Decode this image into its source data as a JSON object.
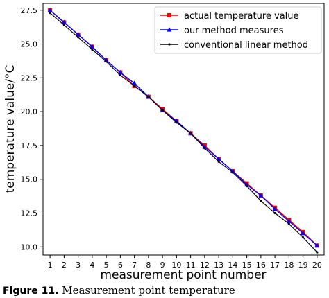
{
  "chart_data": {
    "type": "line",
    "xlabel": "measurement point number",
    "ylabel": "temperature value/°C",
    "x": [
      1,
      2,
      3,
      4,
      5,
      6,
      7,
      8,
      9,
      10,
      11,
      12,
      13,
      14,
      15,
      16,
      17,
      18,
      19,
      20
    ],
    "xlim": [
      0.5,
      20.5
    ],
    "ylim": [
      9.4,
      28.0
    ],
    "yticks": [
      "10.0",
      "12.5",
      "15.0",
      "17.5",
      "20.0",
      "22.5",
      "25.0",
      "27.5"
    ],
    "grid": false,
    "legend_position": "top-right",
    "series": [
      {
        "name": "actual temperature value",
        "color": "#ff0000",
        "marker": "square",
        "values": [
          27.5,
          26.6,
          25.7,
          24.8,
          23.8,
          22.9,
          21.9,
          21.1,
          20.2,
          19.3,
          18.4,
          17.5,
          16.5,
          15.6,
          14.7,
          13.8,
          12.9,
          12.0,
          11.1,
          10.1
        ]
      },
      {
        "name": "our method measures",
        "color": "#0000ff",
        "marker": "triangle",
        "values": [
          27.5,
          26.6,
          25.7,
          24.8,
          23.8,
          22.9,
          22.1,
          21.1,
          20.1,
          19.3,
          18.4,
          17.4,
          16.5,
          15.6,
          14.6,
          13.8,
          12.8,
          11.9,
          11.0,
          10.1
        ]
      },
      {
        "name": "conventional linear method",
        "color": "#000000",
        "marker": "dot",
        "values": [
          27.3,
          26.4,
          25.5,
          24.6,
          23.7,
          22.7,
          21.9,
          21.1,
          20.1,
          19.2,
          18.4,
          17.3,
          16.3,
          15.5,
          14.5,
          13.4,
          12.5,
          11.7,
          10.7,
          9.6
        ]
      }
    ]
  },
  "caption": {
    "label": "Figure 11.",
    "text": "Measurement point temperature"
  }
}
